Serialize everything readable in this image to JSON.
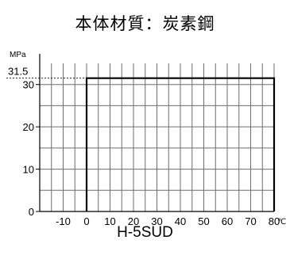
{
  "chart_data": {
    "type": "line",
    "title": "本体材質：炭素鋼",
    "model": "H-5SUD",
    "ylabel": "MPa",
    "xlabel": "℃",
    "xlim": [
      -20,
      80
    ],
    "ylim": [
      0,
      35
    ],
    "x_ticks": [
      -10,
      0,
      10,
      20,
      30,
      40,
      50,
      60,
      70,
      80
    ],
    "y_ticks": [
      0,
      10,
      20,
      30
    ],
    "grid": true,
    "reference_value": 31.5,
    "reference_label": "31.5",
    "series": [
      {
        "x": [
          0,
          0,
          80,
          80
        ],
        "y": [
          0,
          31.5,
          31.5,
          0
        ]
      }
    ]
  }
}
